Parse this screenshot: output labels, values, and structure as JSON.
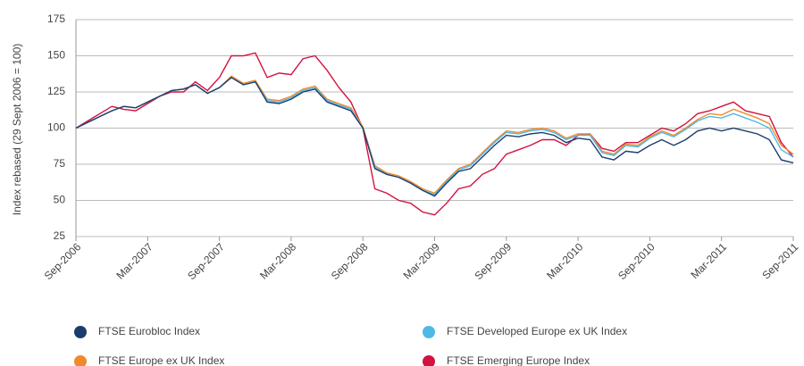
{
  "chart_data": {
    "type": "line",
    "y_label": "Index rebased (29 Sept 2006 = 100)",
    "categories": [
      "Sep-2006",
      null,
      null,
      null,
      null,
      null,
      "Mar-2007",
      null,
      null,
      null,
      null,
      null,
      "Sep-2007",
      null,
      null,
      null,
      null,
      null,
      "Mar-2008",
      null,
      null,
      null,
      null,
      null,
      "Sep-2008",
      null,
      null,
      null,
      null,
      null,
      "Mar-2009",
      null,
      null,
      null,
      null,
      null,
      "Sep-2009",
      null,
      null,
      null,
      null,
      null,
      "Mar-2010",
      null,
      null,
      null,
      null,
      null,
      "Sep-2010",
      null,
      null,
      null,
      null,
      null,
      "Mar-2011",
      null,
      null,
      null,
      null,
      null,
      "Sep-2011"
    ],
    "series": [
      {
        "name": "FTSE Eurobloc Index",
        "color": "#1b3d6e",
        "values": [
          100,
          104,
          108,
          112,
          115,
          114,
          118,
          122,
          126,
          127,
          130,
          124,
          128,
          135,
          130,
          132,
          118,
          117,
          120,
          125,
          127,
          118,
          115,
          112,
          100,
          72,
          68,
          66,
          62,
          57,
          53,
          62,
          70,
          72,
          80,
          88,
          95,
          94,
          96,
          97,
          95,
          90,
          93,
          92,
          80,
          78,
          84,
          83,
          88,
          92,
          88,
          92,
          98,
          100,
          98,
          100,
          98,
          96,
          92,
          78,
          76
        ]
      },
      {
        "name": "FTSE Developed Europe ex UK Index",
        "color": "#4fb9e6",
        "values": [
          100,
          104,
          108,
          112,
          115,
          114,
          118,
          122,
          126,
          127,
          130,
          124,
          128,
          135,
          130,
          132,
          119,
          118,
          121,
          126,
          128,
          119,
          116,
          113,
          100,
          73,
          68,
          66,
          62,
          57,
          54,
          63,
          71,
          74,
          82,
          90,
          97,
          96,
          98,
          99,
          97,
          92,
          95,
          95,
          83,
          81,
          88,
          87,
          93,
          97,
          94,
          99,
          105,
          108,
          107,
          110,
          107,
          104,
          100,
          85,
          80
        ]
      },
      {
        "name": "FTSE Europe ex UK Index",
        "color": "#f08a2c",
        "values": [
          100,
          104,
          108,
          112,
          115,
          114,
          118,
          122,
          126,
          127,
          130,
          124,
          128,
          136,
          131,
          133,
          120,
          119,
          122,
          127,
          129,
          120,
          117,
          114,
          101,
          74,
          69,
          67,
          63,
          58,
          55,
          64,
          72,
          75,
          83,
          91,
          98,
          97,
          99,
          100,
          98,
          93,
          96,
          96,
          84,
          82,
          89,
          88,
          94,
          98,
          95,
          100,
          106,
          110,
          109,
          113,
          110,
          107,
          103,
          88,
          82
        ]
      },
      {
        "name": "FTSE Emerging Europe Index",
        "color": "#d3123f",
        "values": [
          100,
          105,
          110,
          115,
          113,
          112,
          117,
          122,
          125,
          125,
          132,
          126,
          135,
          150,
          150,
          152,
          135,
          138,
          137,
          148,
          150,
          140,
          128,
          118,
          100,
          58,
          55,
          50,
          48,
          42,
          40,
          48,
          58,
          60,
          68,
          72,
          82,
          85,
          88,
          92,
          92,
          88,
          95,
          96,
          86,
          84,
          90,
          90,
          95,
          100,
          98,
          103,
          110,
          112,
          115,
          118,
          112,
          110,
          108,
          90,
          80
        ]
      }
    ],
    "ylim": [
      25,
      175
    ],
    "yticks": [
      25,
      50,
      75,
      100,
      125,
      150,
      175
    ],
    "grid": true
  }
}
